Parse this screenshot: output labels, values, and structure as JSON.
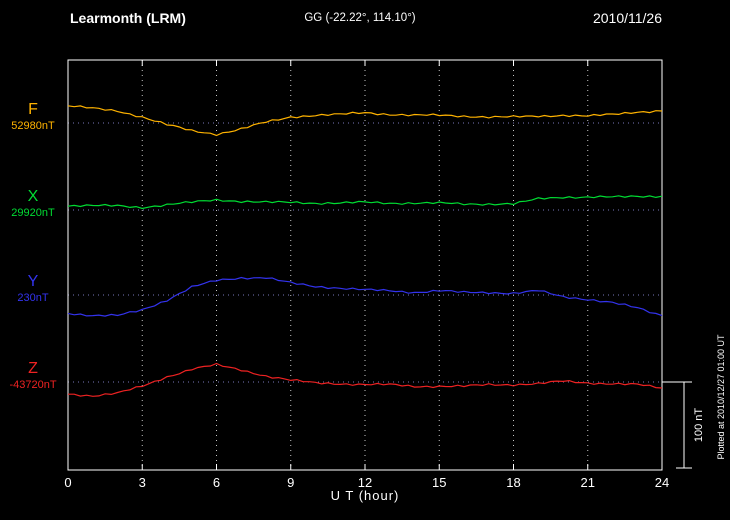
{
  "header": {
    "station": "Learmonth (LRM)",
    "coords": "GG (-22.22°, 114.10°)",
    "date": "2010/11/26"
  },
  "footer": {
    "xlabel": "U T (hour)"
  },
  "plotted_note": "Plotted at 2010/12/27 01:00 UT",
  "chart_data": {
    "type": "line",
    "title": "Learmonth (LRM) magnetogram 2010/11/26",
    "xlabel": "U T (hour)",
    "x_range_hours": [
      0,
      24
    ],
    "x_ticks": [
      0,
      3,
      6,
      9,
      12,
      15,
      18,
      21,
      24
    ],
    "x_hours": [
      0,
      1,
      2,
      3,
      4,
      5,
      6,
      7,
      8,
      9,
      10,
      11,
      12,
      13,
      14,
      15,
      16,
      17,
      18,
      19,
      20,
      21,
      22,
      23,
      24
    ],
    "grid": "dotted",
    "scale_bar": {
      "label": "100 nT",
      "span_nT": 100
    },
    "series": [
      {
        "name": "F",
        "color": "#ffb300",
        "reference_nT": 52980,
        "reference_label": "52980nT",
        "values_nT": [
          53000,
          52997,
          52994,
          52987,
          52978,
          52971,
          52967,
          52973,
          52981,
          52987,
          52989,
          52990,
          52992,
          52990,
          52989,
          52989,
          52988,
          52987,
          52987,
          52988,
          52989,
          52988,
          52990,
          52993,
          52994
        ]
      },
      {
        "name": "X",
        "color": "#00dd33",
        "reference_nT": 29920,
        "reference_label": "29920nT",
        "values_nT": [
          29925,
          29925,
          29925,
          29923,
          29926,
          29929,
          29932,
          29930,
          29929,
          29929,
          29928,
          29928,
          29929,
          29928,
          29928,
          29928,
          29927,
          29927,
          29927,
          29933,
          29935,
          29935,
          29935,
          29936,
          29936
        ]
      },
      {
        "name": "Y",
        "color": "#3333ee",
        "reference_nT": 230,
        "reference_label": "230nT",
        "values_nT": [
          209,
          206,
          206,
          213,
          224,
          239,
          247,
          250,
          250,
          244,
          240,
          238,
          236,
          235,
          233,
          235,
          233,
          233,
          232,
          235,
          228,
          225,
          221,
          215,
          206
        ]
      },
      {
        "name": "Z",
        "color": "#ee2222",
        "reference_nT": -43720,
        "reference_label": "-43720nT",
        "values_nT": [
          -43734,
          -43736,
          -43733,
          -43725,
          -43714,
          -43705,
          -43700,
          -43706,
          -43713,
          -43718,
          -43721,
          -43722,
          -43723,
          -43723,
          -43725,
          -43725,
          -43725,
          -43723,
          -43723,
          -43722,
          -43719,
          -43721,
          -43722,
          -43723,
          -43727
        ]
      }
    ]
  }
}
